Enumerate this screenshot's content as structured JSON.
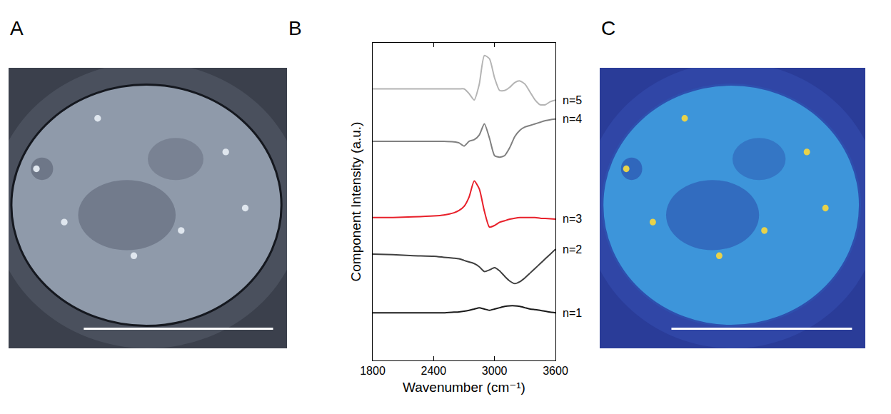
{
  "chart_data": [
    {
      "label": "A",
      "type": "image"
    },
    {
      "label": "B",
      "type": "line",
      "x_label": "Wavenumber (cm⁻¹)",
      "y_label": "Component Intensity (a.u.)",
      "xlim": [
        1800,
        3600
      ],
      "xticks": [
        1800,
        2400,
        3000,
        3600
      ],
      "ylim": [
        0,
        10
      ],
      "tick_labels": "x",
      "x": [
        1800,
        2000,
        2200,
        2400,
        2500,
        2600,
        2650,
        2700,
        2750,
        2800,
        2850,
        2900,
        2950,
        3000,
        3050,
        3100,
        3150,
        3200,
        3250,
        3300,
        3350,
        3400,
        3450,
        3500,
        3550,
        3600
      ],
      "series": [
        {
          "name": "n=5",
          "color": "#b4b4b4",
          "values": [
            8.55,
            8.55,
            8.55,
            8.55,
            8.55,
            8.55,
            8.55,
            8.55,
            8.4,
            8.2,
            8.7,
            9.6,
            9.5,
            8.9,
            8.5,
            8.5,
            8.6,
            8.75,
            8.8,
            8.7,
            8.45,
            8.2,
            8.05,
            8.05,
            8.15,
            8.2
          ]
        },
        {
          "name": "n=4",
          "color": "#808080",
          "values": [
            6.9,
            6.9,
            6.9,
            6.9,
            6.9,
            6.88,
            6.85,
            6.75,
            6.9,
            6.95,
            7.1,
            7.45,
            7.0,
            6.45,
            6.4,
            6.45,
            6.7,
            7.05,
            7.25,
            7.35,
            7.4,
            7.45,
            7.5,
            7.55,
            7.58,
            7.6
          ]
        },
        {
          "name": "n=3",
          "color": "#e8202a",
          "values": [
            4.5,
            4.5,
            4.52,
            4.55,
            4.58,
            4.65,
            4.72,
            4.85,
            5.15,
            5.65,
            5.4,
            4.7,
            4.2,
            4.25,
            4.35,
            4.4,
            4.45,
            4.48,
            4.5,
            4.5,
            4.5,
            4.5,
            4.48,
            4.47,
            4.46,
            4.45
          ]
        },
        {
          "name": "n=2",
          "color": "#404040",
          "values": [
            3.35,
            3.33,
            3.3,
            3.28,
            3.25,
            3.22,
            3.2,
            3.15,
            3.1,
            3.05,
            2.95,
            2.8,
            2.85,
            2.92,
            2.82,
            2.65,
            2.5,
            2.42,
            2.48,
            2.6,
            2.75,
            2.9,
            3.05,
            3.2,
            3.35,
            3.5
          ]
        },
        {
          "name": "n=1",
          "color": "#1a1a1a",
          "values": [
            1.5,
            1.5,
            1.5,
            1.5,
            1.5,
            1.52,
            1.53,
            1.55,
            1.58,
            1.62,
            1.66,
            1.62,
            1.58,
            1.62,
            1.66,
            1.7,
            1.72,
            1.72,
            1.7,
            1.66,
            1.62,
            1.6,
            1.58,
            1.55,
            1.52,
            1.5
          ]
        }
      ]
    },
    {
      "label": "C",
      "type": "image"
    }
  ]
}
